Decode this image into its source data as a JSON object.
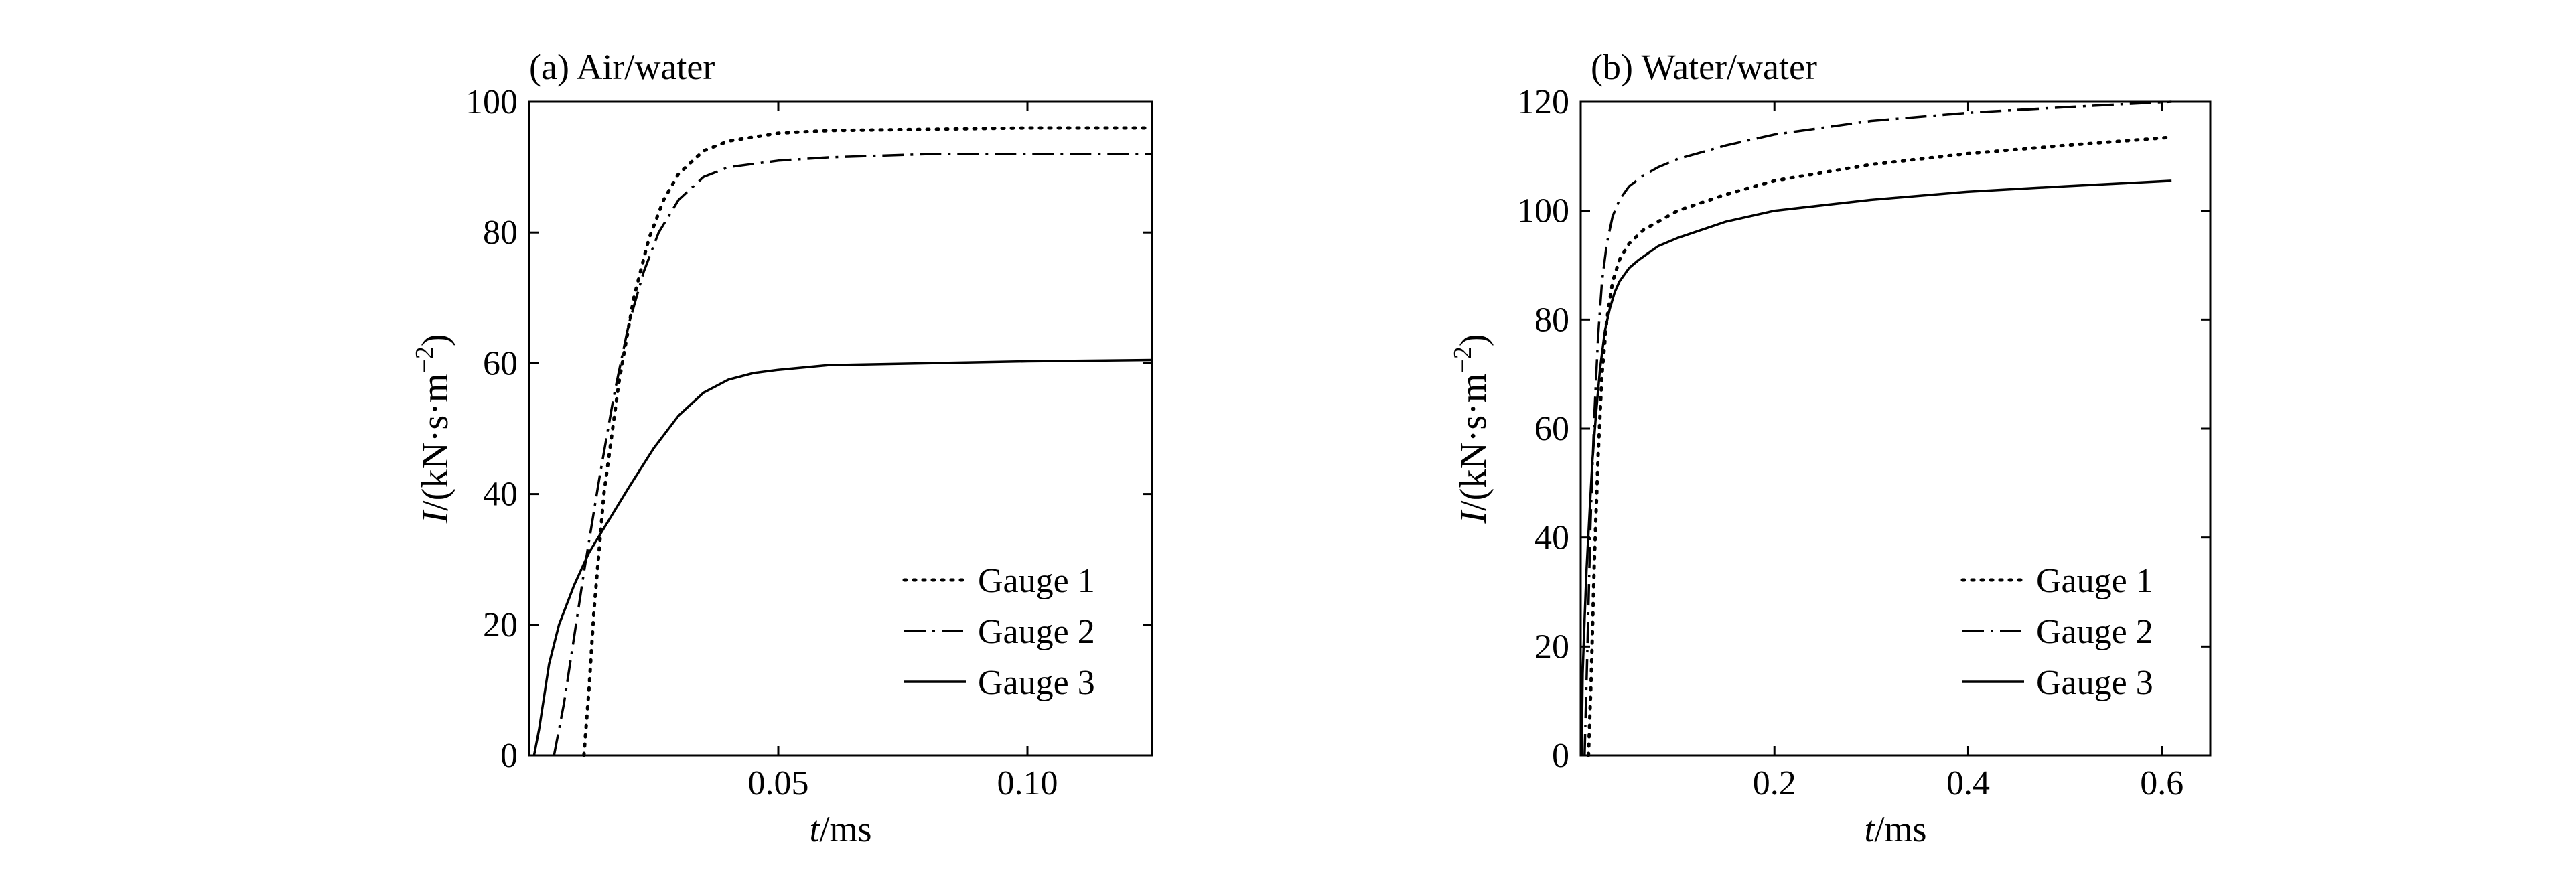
{
  "chart_data": [
    {
      "type": "line",
      "title": "(a) Air/water",
      "xlabel": "t/ms",
      "xlabel_parts": {
        "symbol": "t",
        "unit": "/ms"
      },
      "ylabel": "I/(kN·s·m−2)",
      "ylabel_parts": {
        "symbol": "I",
        "unit": "/(kN·s·m",
        "sup": "−2",
        "close": ")"
      },
      "xlim": [
        0,
        0.125
      ],
      "ylim": [
        0,
        100
      ],
      "xticks": [
        0.05,
        0.1
      ],
      "xtick_labels": [
        "0.05",
        "0.10"
      ],
      "yticks": [
        0,
        20,
        40,
        60,
        80,
        100
      ],
      "ytick_labels": [
        "0",
        "20",
        "40",
        "60",
        "80",
        "100"
      ],
      "grid": false,
      "legend": "bottom-right",
      "series": [
        {
          "name": "Gauge 1",
          "style": "dotted",
          "x": [
            0.011,
            0.012,
            0.013,
            0.015,
            0.018,
            0.021,
            0.024,
            0.027,
            0.03,
            0.035,
            0.04,
            0.05,
            0.06,
            0.08,
            0.1,
            0.125
          ],
          "y": [
            0,
            10,
            22,
            40,
            57,
            70,
            79,
            85,
            89,
            92.5,
            94,
            95.2,
            95.6,
            95.8,
            96,
            96
          ]
        },
        {
          "name": "Gauge 2",
          "style": "dash-dot",
          "x": [
            0.005,
            0.007,
            0.009,
            0.011,
            0.014,
            0.017,
            0.02,
            0.023,
            0.026,
            0.03,
            0.035,
            0.04,
            0.05,
            0.06,
            0.08,
            0.1,
            0.125
          ],
          "y": [
            0,
            8,
            18,
            28,
            42,
            55,
            66,
            74,
            80,
            85,
            88.5,
            90,
            91,
            91.5,
            92,
            92,
            92
          ]
        },
        {
          "name": "Gauge 3",
          "style": "solid",
          "x": [
            0.001,
            0.002,
            0.004,
            0.006,
            0.009,
            0.012,
            0.016,
            0.02,
            0.025,
            0.03,
            0.035,
            0.04,
            0.045,
            0.05,
            0.06,
            0.08,
            0.1,
            0.125
          ],
          "y": [
            0,
            4,
            14,
            20,
            26,
            31,
            36,
            41,
            47,
            52,
            55.5,
            57.5,
            58.5,
            59,
            59.7,
            60,
            60.3,
            60.5
          ]
        }
      ]
    },
    {
      "type": "line",
      "title": "(b) Water/water",
      "xlabel": "t/ms",
      "xlabel_parts": {
        "symbol": "t",
        "unit": "/ms"
      },
      "ylabel": "I/(kN·s·m−2)",
      "ylabel_parts": {
        "symbol": "I",
        "unit": "/(kN·s·m",
        "sup": "−2",
        "close": ")"
      },
      "xlim": [
        0,
        0.65
      ],
      "ylim": [
        0,
        120
      ],
      "xticks": [
        0.2,
        0.4,
        0.6
      ],
      "xtick_labels": [
        "0.2",
        "0.4",
        "0.6"
      ],
      "yticks": [
        0,
        20,
        40,
        60,
        80,
        100,
        120
      ],
      "ytick_labels": [
        "0",
        "20",
        "40",
        "60",
        "80",
        "100",
        "120"
      ],
      "grid": false,
      "legend": "bottom-right",
      "series": [
        {
          "name": "Gauge 1",
          "style": "dotted",
          "x": [
            0.008,
            0.011,
            0.014,
            0.018,
            0.022,
            0.027,
            0.033,
            0.04,
            0.05,
            0.065,
            0.08,
            0.1,
            0.15,
            0.2,
            0.3,
            0.4,
            0.5,
            0.61
          ],
          "y": [
            0,
            15,
            35,
            55,
            70,
            80,
            87,
            91,
            94,
            96.5,
            98,
            100,
            103,
            105.5,
            108.5,
            110.5,
            112,
            113.5
          ]
        },
        {
          "name": "Gauge 2",
          "style": "dash-dot",
          "x": [
            0.004,
            0.007,
            0.01,
            0.014,
            0.018,
            0.022,
            0.027,
            0.033,
            0.04,
            0.05,
            0.065,
            0.08,
            0.1,
            0.15,
            0.2,
            0.3,
            0.4,
            0.5,
            0.61
          ],
          "y": [
            0,
            20,
            42,
            62,
            77,
            87,
            94,
            99,
            102,
            104.5,
            106.5,
            108,
            109.5,
            112,
            114,
            116.5,
            118,
            119,
            120
          ]
        },
        {
          "name": "Gauge 3",
          "style": "solid",
          "x": [
            0.001,
            0.002,
            0.004,
            0.006,
            0.009,
            0.012,
            0.016,
            0.02,
            0.025,
            0.03,
            0.035,
            0.04,
            0.05,
            0.06,
            0.08,
            0.1,
            0.15,
            0.2,
            0.3,
            0.4,
            0.5,
            0.61
          ],
          "y": [
            0,
            15,
            25,
            34,
            44,
            54,
            63,
            71,
            78,
            82,
            85,
            87,
            89.5,
            91,
            93.5,
            95,
            98,
            100,
            102,
            103.5,
            104.5,
            105.5
          ]
        }
      ]
    }
  ]
}
